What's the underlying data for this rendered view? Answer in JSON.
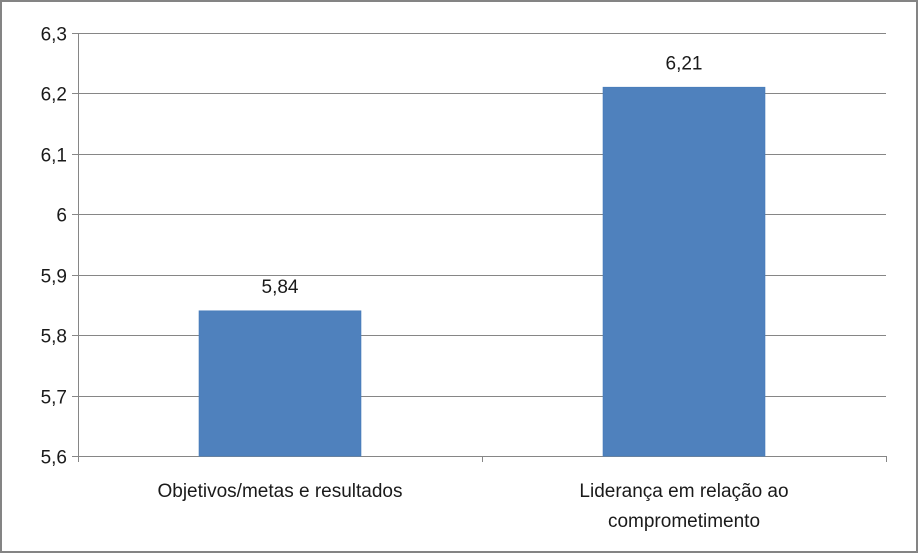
{
  "chart_data": {
    "type": "bar",
    "categories": [
      [
        "Objetivos/metas e resultados"
      ],
      [
        "Liderança em relação ao",
        "comprometimento"
      ]
    ],
    "values": [
      5.84,
      6.21
    ],
    "value_labels": [
      "5,84",
      "6,21"
    ],
    "ylim": [
      5.6,
      6.3
    ],
    "yticks": [
      5.6,
      5.7,
      5.8,
      5.9,
      6.0,
      6.1,
      6.2,
      6.3
    ],
    "ytick_labels": [
      "5,6",
      "5,7",
      "5,8",
      "5,9",
      "6",
      "6,1",
      "6,2",
      "6,3"
    ],
    "grid": true,
    "legend": "none",
    "bar_color": "#4f81bd",
    "grid_color": "#868686"
  }
}
